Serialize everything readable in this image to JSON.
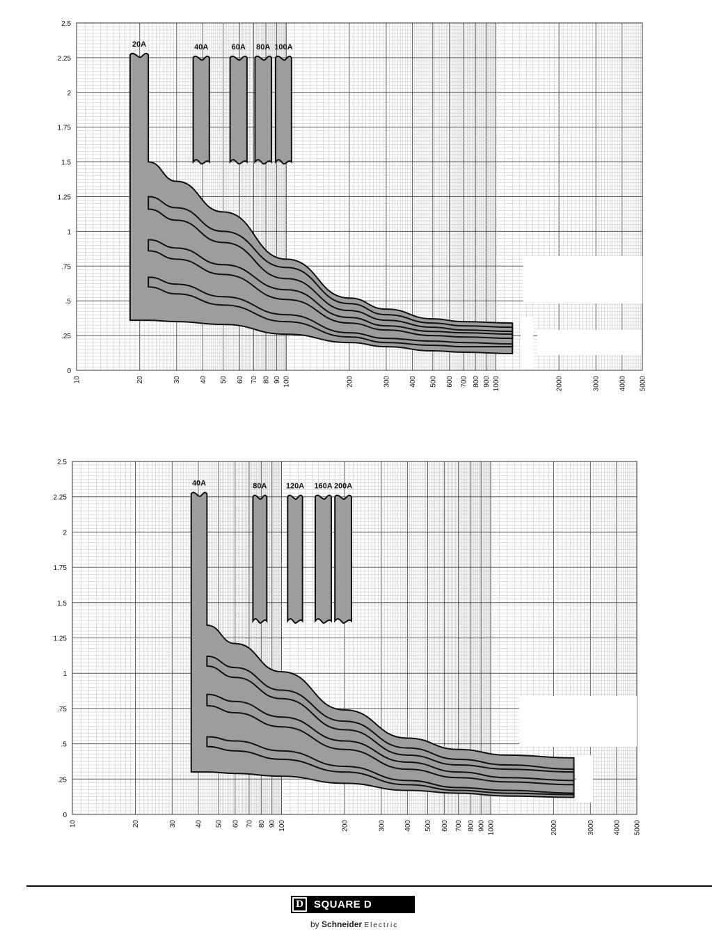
{
  "chart_data": [
    {
      "type": "line",
      "title": "",
      "xlabel": "",
      "ylabel": "",
      "x_scale": "log",
      "xlim": [
        10,
        5000
      ],
      "ylim": [
        0,
        2.5
      ],
      "grid": true,
      "y_ticks": [
        "0",
        ".25",
        ".5",
        ".75",
        "1",
        "1.25",
        "1.5",
        "1.75",
        "2",
        "2.25",
        "2.5"
      ],
      "x_ticks": [
        "10",
        "20",
        "30",
        "40",
        "50",
        "60",
        "70",
        "80",
        "90",
        "100",
        "200",
        "300",
        "400",
        "500",
        "600",
        "700",
        "800",
        "900",
        "1000",
        "2000",
        "3000",
        "4000",
        "5000"
      ],
      "rating_bands": [
        {
          "label": "20A",
          "x": [
            18,
            22
          ],
          "y": [
            1.5,
            2.27
          ]
        },
        {
          "label": "40A",
          "x": [
            36,
            43
          ],
          "y": [
            1.5,
            2.25
          ]
        },
        {
          "label": "60A",
          "x": [
            54,
            65
          ],
          "y": [
            1.5,
            2.25
          ]
        },
        {
          "label": "80A",
          "x": [
            71,
            85
          ],
          "y": [
            1.5,
            2.25
          ]
        },
        {
          "label": "100A",
          "x": [
            89,
            106
          ],
          "y": [
            1.5,
            2.25
          ]
        }
      ],
      "trip_bands": [
        {
          "x": [
            18,
            22,
            30,
            50,
            100,
            200,
            300,
            500,
            700,
            1200
          ],
          "upper": [
            1.5,
            1.5,
            1.36,
            1.14,
            0.8,
            0.52,
            0.44,
            0.37,
            0.35,
            0.34
          ],
          "lower": [
            0.36,
            0.36,
            0.35,
            0.33,
            0.26,
            0.2,
            0.17,
            0.14,
            0.13,
            0.12
          ]
        },
        {
          "x": [
            22,
            30,
            50,
            100,
            200,
            300,
            500,
            700,
            1200
          ],
          "upper": [
            1.25,
            1.17,
            1.0,
            0.74,
            0.48,
            0.4,
            0.34,
            0.32,
            0.31
          ],
          "lower": [
            1.16,
            1.08,
            0.92,
            0.66,
            0.43,
            0.36,
            0.31,
            0.29,
            0.28
          ]
        },
        {
          "x": [
            22,
            30,
            50,
            100,
            200,
            300,
            500,
            700,
            1200
          ],
          "upper": [
            0.94,
            0.88,
            0.76,
            0.58,
            0.38,
            0.32,
            0.28,
            0.27,
            0.26
          ],
          "lower": [
            0.86,
            0.8,
            0.69,
            0.51,
            0.34,
            0.29,
            0.25,
            0.24,
            0.23
          ]
        },
        {
          "x": [
            22,
            30,
            50,
            100,
            200,
            300,
            500,
            700,
            1200
          ],
          "upper": [
            0.67,
            0.62,
            0.53,
            0.4,
            0.27,
            0.23,
            0.21,
            0.2,
            0.19
          ],
          "lower": [
            0.6,
            0.55,
            0.47,
            0.35,
            0.24,
            0.2,
            0.18,
            0.17,
            0.17
          ]
        }
      ]
    },
    {
      "type": "line",
      "title": "",
      "xlabel": "",
      "ylabel": "",
      "x_scale": "log",
      "xlim": [
        10,
        5000
      ],
      "ylim": [
        0,
        2.5
      ],
      "grid": true,
      "y_ticks": [
        "0",
        ".25",
        ".5",
        ".75",
        "1",
        "1.25",
        "1.5",
        "1.75",
        "2",
        "2.25",
        "2.5"
      ],
      "x_ticks": [
        "10",
        "20",
        "30",
        "40",
        "50",
        "60",
        "70",
        "80",
        "90",
        "100",
        "200",
        "300",
        "400",
        "500",
        "600",
        "700",
        "800",
        "900",
        "1000",
        "2000",
        "3000",
        "4000",
        "5000"
      ],
      "rating_bands": [
        {
          "label": "40A",
          "x": [
            37,
            44
          ],
          "y": [
            1.33,
            2.27
          ]
        },
        {
          "label": "80A",
          "x": [
            73,
            85
          ],
          "y": [
            1.37,
            2.25
          ]
        },
        {
          "label": "120A",
          "x": [
            107,
            126
          ],
          "y": [
            1.37,
            2.25
          ]
        },
        {
          "label": "160A",
          "x": [
            145,
            173
          ],
          "y": [
            1.37,
            2.25
          ]
        },
        {
          "label": "200A",
          "x": [
            180,
            216
          ],
          "y": [
            1.37,
            2.25
          ]
        }
      ],
      "trip_bands": [
        {
          "x": [
            37,
            44,
            60,
            100,
            200,
            400,
            700,
            1200,
            2500
          ],
          "upper": [
            1.34,
            1.34,
            1.21,
            1.01,
            0.74,
            0.54,
            0.46,
            0.42,
            0.4
          ],
          "lower": [
            0.3,
            0.3,
            0.29,
            0.27,
            0.22,
            0.17,
            0.15,
            0.13,
            0.12
          ]
        },
        {
          "x": [
            44,
            60,
            100,
            200,
            400,
            700,
            1200,
            2500
          ],
          "upper": [
            1.12,
            1.04,
            0.88,
            0.66,
            0.47,
            0.39,
            0.35,
            0.32
          ],
          "lower": [
            1.05,
            0.97,
            0.82,
            0.6,
            0.42,
            0.35,
            0.32,
            0.3
          ]
        },
        {
          "x": [
            44,
            60,
            100,
            200,
            400,
            700,
            1200,
            2500
          ],
          "upper": [
            0.85,
            0.8,
            0.69,
            0.52,
            0.37,
            0.3,
            0.26,
            0.24
          ],
          "lower": [
            0.77,
            0.72,
            0.62,
            0.46,
            0.32,
            0.26,
            0.23,
            0.21
          ]
        },
        {
          "x": [
            44,
            60,
            100,
            200,
            400,
            700,
            1200,
            2500
          ],
          "upper": [
            0.55,
            0.52,
            0.45,
            0.34,
            0.24,
            0.19,
            0.17,
            0.15
          ],
          "lower": [
            0.48,
            0.45,
            0.39,
            0.3,
            0.21,
            0.17,
            0.15,
            0.14
          ]
        }
      ]
    }
  ],
  "footer": {
    "brand_letter": "D",
    "brand_name": "SQUARE D",
    "by": "by",
    "company": "Schneider",
    "company_suffix": "Electric"
  },
  "colors": {
    "band_fill": "#9d9d9d",
    "outline": "#111111",
    "grid": "#bdbdbd",
    "brand": "#000000"
  }
}
